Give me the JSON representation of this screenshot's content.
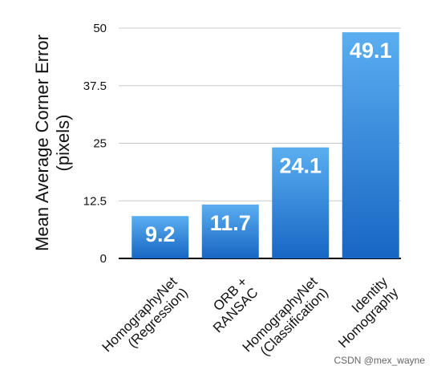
{
  "chart_data": {
    "type": "bar",
    "title": "",
    "xlabel": "",
    "ylabel_lines": [
      "Mean Average Corner Error",
      "(pixels)"
    ],
    "ylim": [
      0,
      50
    ],
    "yticks": [
      0,
      12.5,
      25,
      37.5,
      50
    ],
    "ytick_labels": [
      "0",
      "12.5",
      "25",
      "37.5",
      "50"
    ],
    "grid": true,
    "categories": [
      [
        "HomographyNet",
        "(Regression)"
      ],
      [
        "ORB +",
        "RANSAC"
      ],
      [
        "HomographyNet",
        "(Classification)"
      ],
      [
        "Identity",
        "Homography"
      ]
    ],
    "values": [
      9.2,
      11.7,
      24.1,
      49.1
    ],
    "data_labels": [
      "9.2",
      "11.7",
      "24.1",
      "49.1"
    ],
    "bar_color_top": "#5aaef0",
    "bar_color_bottom": "#1766c4"
  },
  "watermark": "CSDN @mex_wayne"
}
